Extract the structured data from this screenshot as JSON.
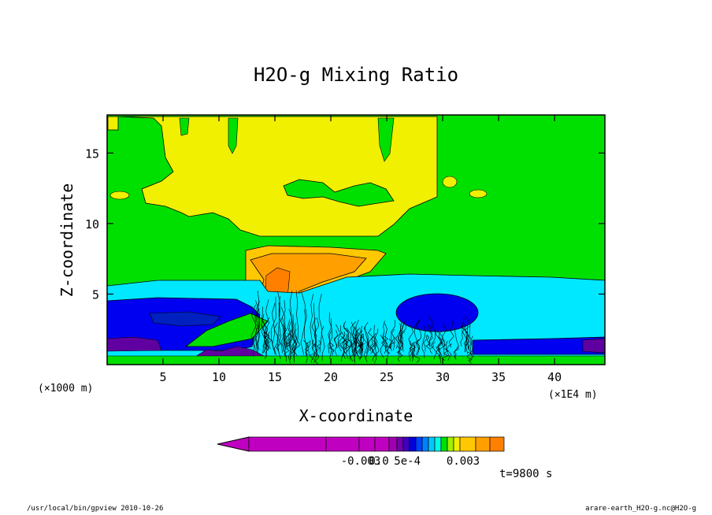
{
  "colors": {
    "background": "#00e000",
    "plume_yellow": "#f0f000",
    "cyan": "#00e8ff",
    "blue": "#0000f0",
    "navy": "#0020c0",
    "purple": "#6000a0",
    "orange": "#ffa000",
    "orange_dark": "#ff8000",
    "gold": "#ffc800"
  },
  "chart_data": {
    "type": "heatmap",
    "title": "H2O-g Mixing Ratio",
    "xlabel": "X-coordinate",
    "ylabel": "Z-coordinate",
    "x_unit_left": "(×1000 m)",
    "x_unit_right": "(×1E4 m)",
    "xlim": [
      0,
      44.5
    ],
    "ylim": [
      0,
      17.7
    ],
    "xticks": [
      5,
      10,
      15,
      20,
      25,
      30,
      35,
      40
    ],
    "yticks": [
      5,
      10,
      15
    ],
    "colorbar": {
      "colors": [
        "#c000c0",
        "#c000c0",
        "#c000c0",
        "#c000c0",
        "#a000b0",
        "#7000b0",
        "#4000c0",
        "#0000e0",
        "#0040ff",
        "#0080ff",
        "#00c8ff",
        "#00ffe0",
        "#00e000",
        "#a0f000",
        "#f0f000",
        "#ffc800",
        "#ffa000",
        "#ff8000",
        "#ff0000"
      ],
      "tick_labels": [
        "-0.003",
        "0.0",
        "5e-4",
        "0.003"
      ]
    },
    "time_label": "t=9800 s"
  },
  "footer": {
    "left": "/usr/local/bin/gpview  2010-10-26",
    "right": "arare-earth_H2O-g.nc@H2O-g"
  }
}
